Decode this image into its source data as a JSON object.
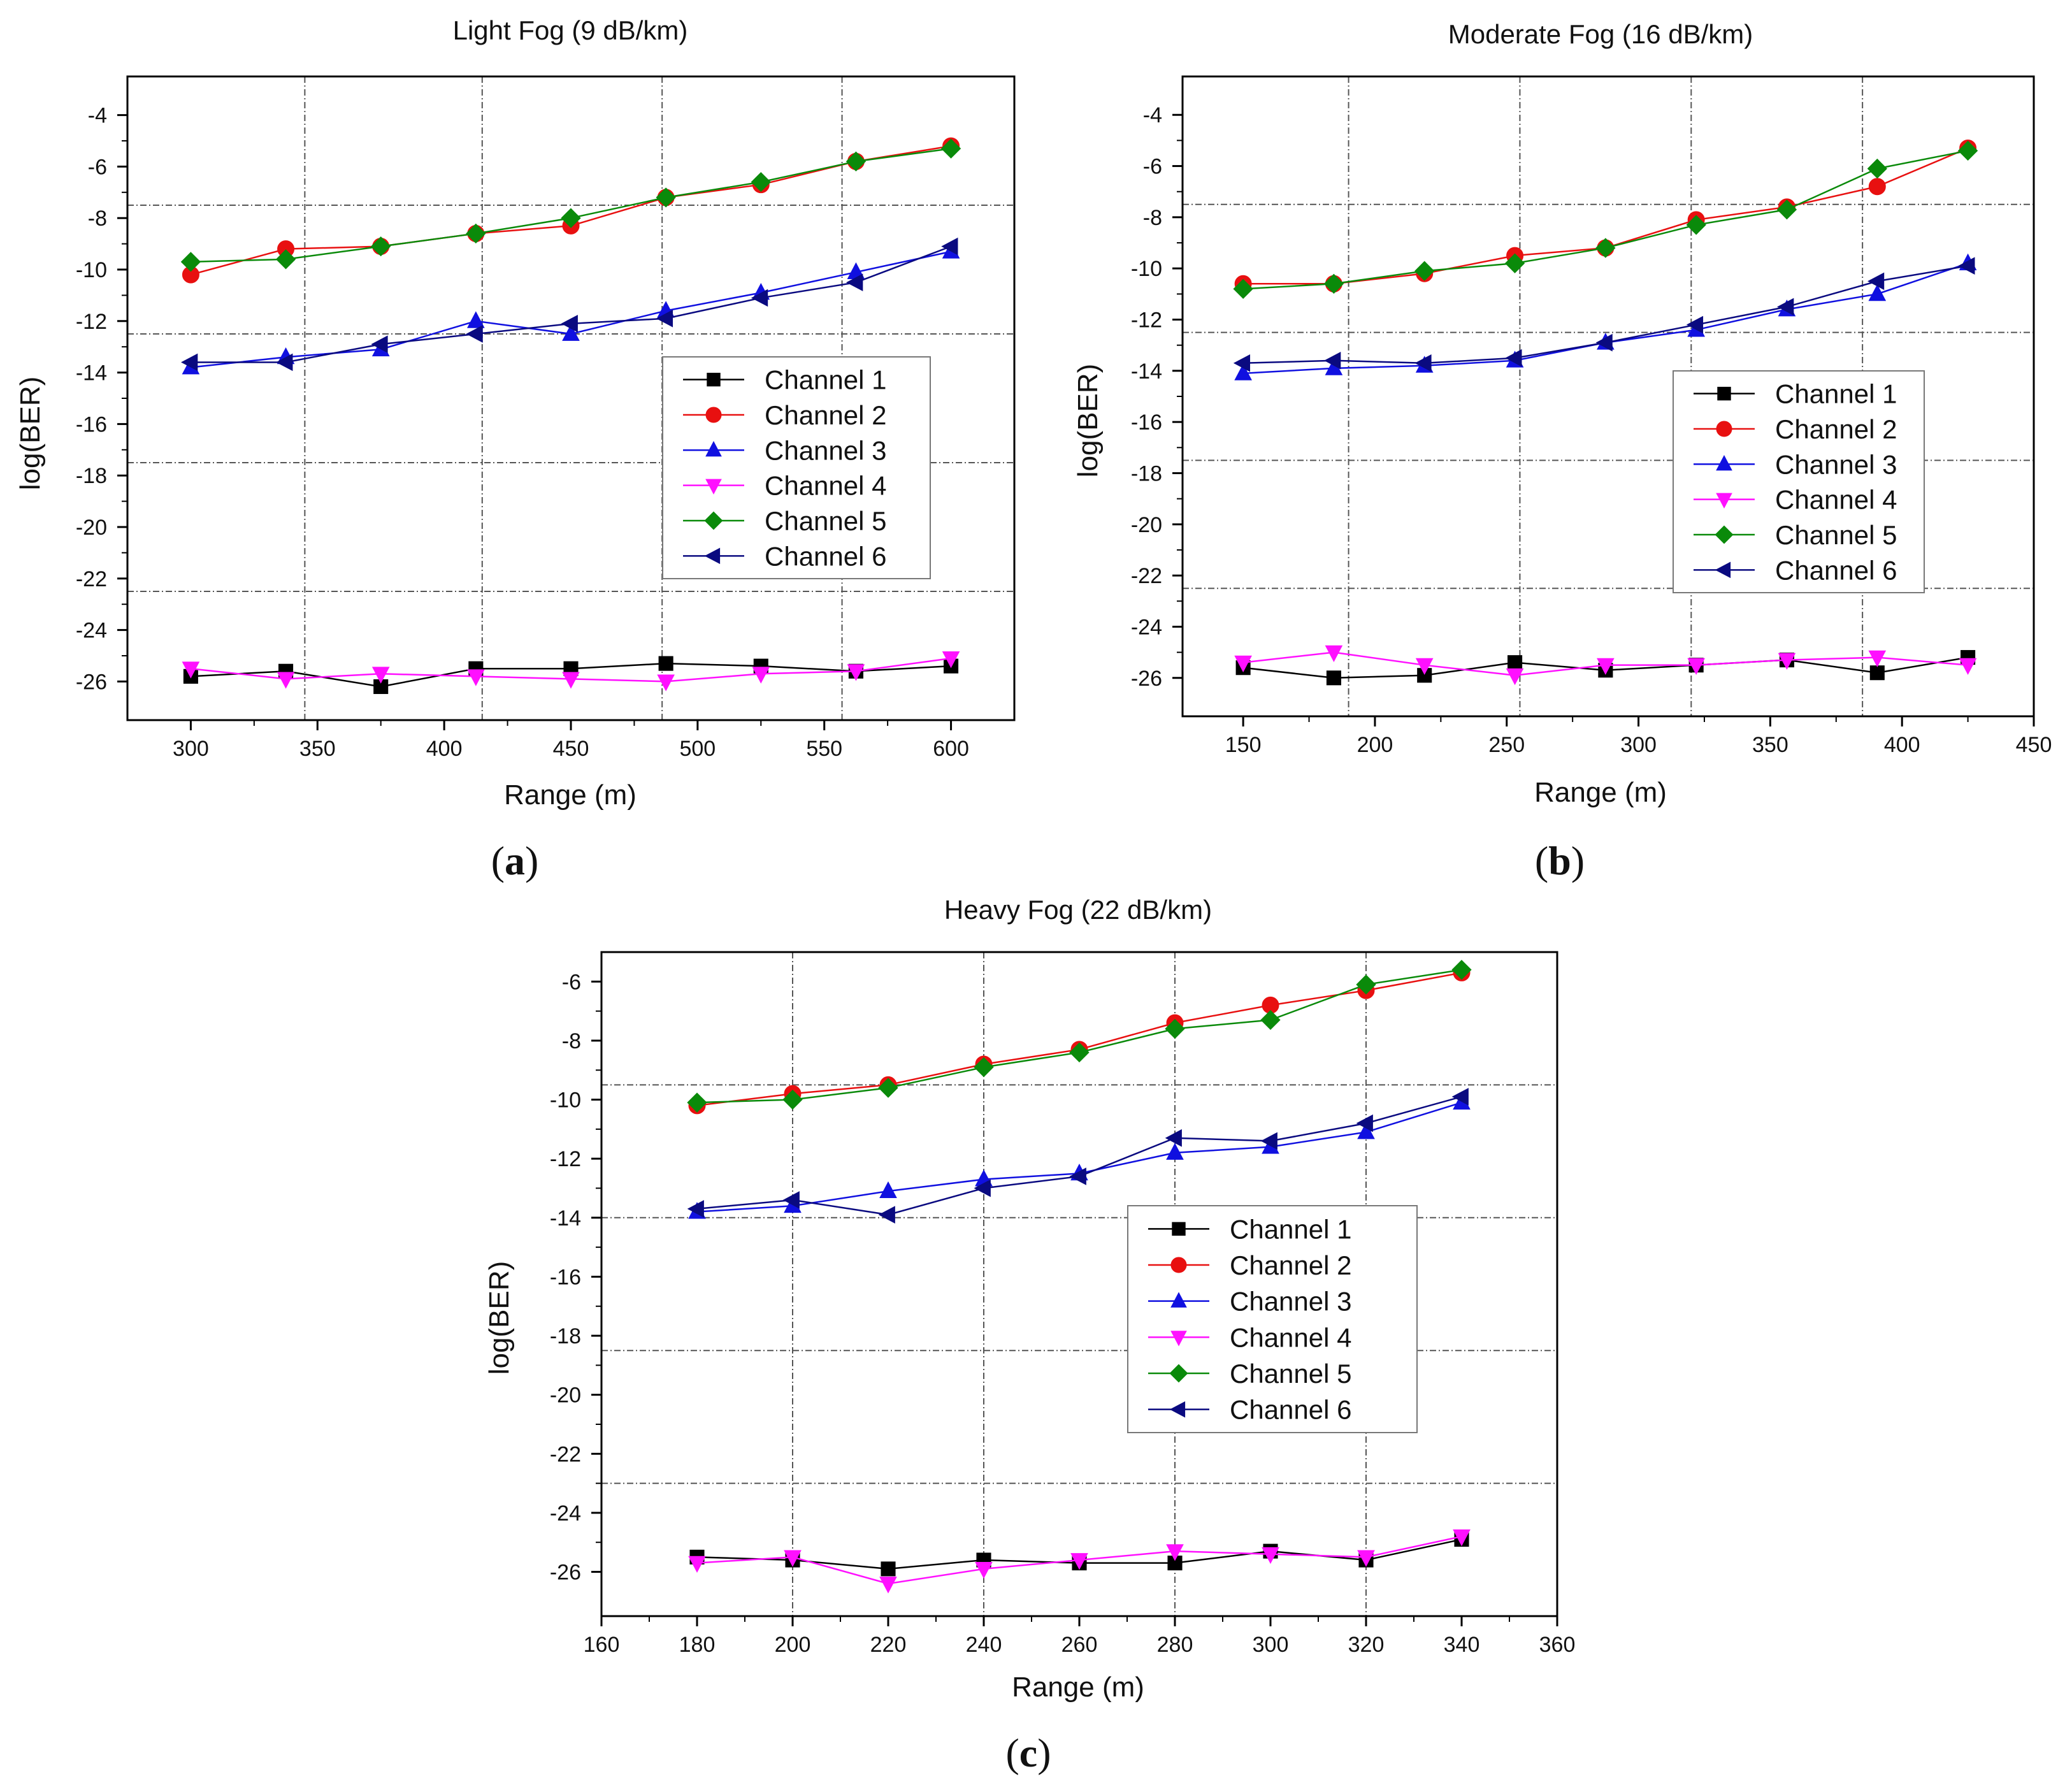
{
  "figure": {
    "captions": [
      "(a)",
      "(b)",
      "(c)"
    ]
  },
  "colors": {
    "Channel 1": "#000000",
    "Channel 2": "#e81010",
    "Channel 3": "#1010e0",
    "Channel 4": "#ff10ff",
    "Channel 5": "#0a8a0a",
    "Channel 6": "#0a0a80"
  },
  "chart_data": [
    {
      "type": "line",
      "panel": "a",
      "title": "Light Fog (9 dB/km)",
      "xlabel": "Range (m)",
      "ylabel": "log(BER)",
      "xlim": [
        275,
        625
      ],
      "ylim": [
        -27.5,
        -2.5
      ],
      "xticks": [
        300,
        350,
        400,
        450,
        500,
        550,
        600
      ],
      "yticks": [
        -26,
        -24,
        -22,
        -20,
        -18,
        -16,
        -14,
        -12,
        -10,
        -8,
        -6,
        -4
      ],
      "grid_x": [
        345,
        415,
        486,
        557
      ],
      "grid_y": [
        -7.5,
        -12.5,
        -17.5,
        -22.5
      ],
      "legend_position": "center-right",
      "x": [
        300,
        337.5,
        375,
        412.5,
        450,
        487.5,
        525,
        562.5,
        600
      ],
      "series": [
        {
          "name": "Channel 1",
          "marker": "square",
          "values": [
            -25.8,
            -25.6,
            -26.2,
            -25.5,
            -25.5,
            -25.3,
            -25.4,
            -25.6,
            -25.4
          ]
        },
        {
          "name": "Channel 2",
          "marker": "circle",
          "values": [
            -10.2,
            -9.2,
            -9.1,
            -8.6,
            -8.3,
            -7.2,
            -6.7,
            -5.8,
            -5.2
          ]
        },
        {
          "name": "Channel 3",
          "marker": "triangle-up",
          "values": [
            -13.8,
            -13.4,
            -13.1,
            -12.0,
            -12.5,
            -11.6,
            -10.9,
            -10.1,
            -9.3
          ]
        },
        {
          "name": "Channel 4",
          "marker": "triangle-down",
          "values": [
            -25.5,
            -25.9,
            -25.7,
            -25.8,
            -25.9,
            -26.0,
            -25.7,
            -25.6,
            -25.1
          ]
        },
        {
          "name": "Channel 5",
          "marker": "diamond",
          "values": [
            -9.7,
            -9.6,
            -9.1,
            -8.6,
            -8.0,
            -7.2,
            -6.6,
            -5.8,
            -5.3
          ]
        },
        {
          "name": "Channel 6",
          "marker": "triangle-left",
          "values": [
            -13.6,
            -13.6,
            -12.9,
            -12.5,
            -12.1,
            -11.9,
            -11.1,
            -10.5,
            -9.1
          ]
        }
      ]
    },
    {
      "type": "line",
      "panel": "b",
      "title": "Moderate Fog (16 dB/km)",
      "xlabel": "Range (m)",
      "ylabel": "log(BER)",
      "xlim": [
        127,
        450
      ],
      "ylim": [
        -27.5,
        -2.5
      ],
      "xticks": [
        150,
        200,
        250,
        300,
        350,
        400,
        450
      ],
      "yticks": [
        -26,
        -24,
        -22,
        -20,
        -18,
        -16,
        -14,
        -12,
        -10,
        -8,
        -6,
        -4
      ],
      "grid_x": [
        190,
        255,
        320,
        385
      ],
      "grid_y": [
        -7.5,
        -12.5,
        -17.5,
        -22.5
      ],
      "legend_position": "center-right",
      "x": [
        150,
        184.4,
        218.8,
        253.1,
        287.5,
        321.9,
        356.3,
        390.6,
        425
      ],
      "series": [
        {
          "name": "Channel 1",
          "marker": "square",
          "values": [
            -25.6,
            -26.0,
            -25.9,
            -25.4,
            -25.7,
            -25.5,
            -25.3,
            -25.8,
            -25.2
          ]
        },
        {
          "name": "Channel 2",
          "marker": "circle",
          "values": [
            -10.6,
            -10.6,
            -10.2,
            -9.5,
            -9.2,
            -8.1,
            -7.6,
            -6.8,
            -5.3
          ]
        },
        {
          "name": "Channel 3",
          "marker": "triangle-up",
          "values": [
            -14.1,
            -13.9,
            -13.8,
            -13.6,
            -12.9,
            -12.4,
            -11.6,
            -11.0,
            -9.8
          ]
        },
        {
          "name": "Channel 4",
          "marker": "triangle-down",
          "values": [
            -25.4,
            -25.0,
            -25.5,
            -25.9,
            -25.5,
            -25.5,
            -25.3,
            -25.2,
            -25.5
          ]
        },
        {
          "name": "Channel 5",
          "marker": "diamond",
          "values": [
            -10.8,
            -10.6,
            -10.1,
            -9.8,
            -9.2,
            -8.3,
            -7.7,
            -6.1,
            -5.4
          ]
        },
        {
          "name": "Channel 6",
          "marker": "triangle-left",
          "values": [
            -13.7,
            -13.6,
            -13.7,
            -13.5,
            -12.9,
            -12.2,
            -11.5,
            -10.5,
            -9.9
          ]
        }
      ]
    },
    {
      "type": "line",
      "panel": "c",
      "title": "Heavy Fog (22 dB/km)",
      "xlabel": "Range (m)",
      "ylabel": "log(BER)",
      "xlim": [
        160,
        360
      ],
      "ylim": [
        -27.5,
        -5
      ],
      "xticks": [
        160,
        180,
        200,
        220,
        240,
        260,
        280,
        300,
        320,
        340,
        360
      ],
      "yticks": [
        -26,
        -24,
        -22,
        -20,
        -18,
        -16,
        -14,
        -12,
        -10,
        -8,
        -6
      ],
      "grid_x": [
        200,
        240,
        280,
        320
      ],
      "grid_y": [
        -9.5,
        -14,
        -18.5,
        -23
      ],
      "legend_position": "center-right",
      "x": [
        180,
        200,
        220,
        240,
        260,
        280,
        300,
        320,
        340
      ],
      "series": [
        {
          "name": "Channel 1",
          "marker": "square",
          "values": [
            -25.5,
            -25.6,
            -25.9,
            -25.6,
            -25.7,
            -25.7,
            -25.3,
            -25.6,
            -24.9
          ]
        },
        {
          "name": "Channel 2",
          "marker": "circle",
          "values": [
            -10.2,
            -9.8,
            -9.5,
            -8.8,
            -8.3,
            -7.4,
            -6.8,
            -6.3,
            -5.7
          ]
        },
        {
          "name": "Channel 3",
          "marker": "triangle-up",
          "values": [
            -13.8,
            -13.6,
            -13.1,
            -12.7,
            -12.5,
            -11.8,
            -11.6,
            -11.1,
            -10.1
          ]
        },
        {
          "name": "Channel 4",
          "marker": "triangle-down",
          "values": [
            -25.7,
            -25.5,
            -26.4,
            -25.9,
            -25.6,
            -25.3,
            -25.4,
            -25.5,
            -24.8
          ]
        },
        {
          "name": "Channel 5",
          "marker": "diamond",
          "values": [
            -10.1,
            -10.0,
            -9.6,
            -8.9,
            -8.4,
            -7.6,
            -7.3,
            -6.1,
            -5.6
          ]
        },
        {
          "name": "Channel 6",
          "marker": "triangle-left",
          "values": [
            -13.7,
            -13.4,
            -13.9,
            -13.0,
            -12.6,
            -11.3,
            -11.4,
            -10.8,
            -9.9
          ]
        }
      ]
    }
  ]
}
